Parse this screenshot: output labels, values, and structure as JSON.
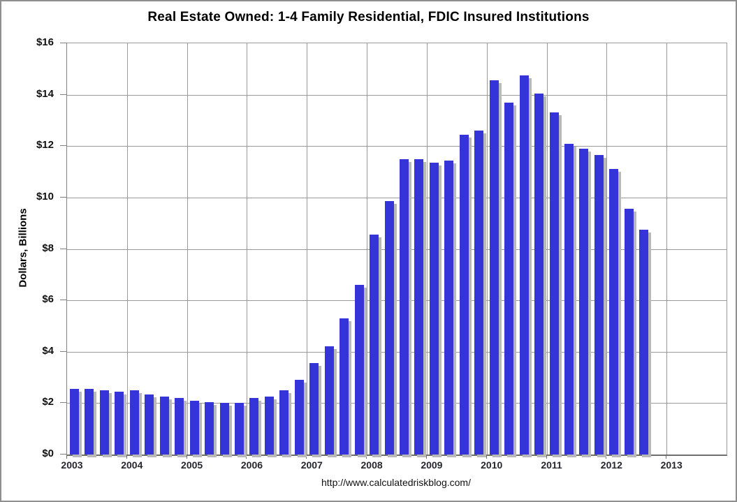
{
  "window": {
    "background": "#ffffff",
    "border_color": "#8f8f8f"
  },
  "chart_data": {
    "type": "bar",
    "title": "Real Estate Owned: 1-4 Family Residential, FDIC Insured Institutions",
    "ylabel": "Dollars, Billions",
    "xlabel": "",
    "footer": "http://www.calculatedriskblog.com/",
    "ylim": [
      0,
      16
    ],
    "y_tick_step": 2,
    "y_tick_labels": [
      "$0",
      "$2",
      "$4",
      "$6",
      "$8",
      "$10",
      "$12",
      "$14",
      "$16"
    ],
    "x_tick_labels": [
      "2003",
      "2004",
      "2005",
      "2006",
      "2007",
      "2008",
      "2009",
      "2010",
      "2011",
      "2012",
      "2013"
    ],
    "x_axis_years_span": 11,
    "quarters_per_year": 4,
    "grid": true,
    "legend_position": "none",
    "bar_color": "#3434d8",
    "bar_shadow_color": "#b9b9b9",
    "gridline_color": "#9a9a9a",
    "categories": [
      "2003 Q1",
      "2003 Q2",
      "2003 Q3",
      "2003 Q4",
      "2004 Q1",
      "2004 Q2",
      "2004 Q3",
      "2004 Q4",
      "2005 Q1",
      "2005 Q2",
      "2005 Q3",
      "2005 Q4",
      "2006 Q1",
      "2006 Q2",
      "2006 Q3",
      "2006 Q4",
      "2007 Q1",
      "2007 Q2",
      "2007 Q3",
      "2007 Q4",
      "2008 Q1",
      "2008 Q2",
      "2008 Q3",
      "2008 Q4",
      "2009 Q1",
      "2009 Q2",
      "2009 Q3",
      "2009 Q4",
      "2010 Q1",
      "2010 Q2",
      "2010 Q3",
      "2010 Q4",
      "2011 Q1",
      "2011 Q2",
      "2011 Q3",
      "2011 Q4",
      "2012 Q1",
      "2012 Q2",
      "2012 Q3"
    ],
    "values": [
      2.55,
      2.55,
      2.5,
      2.45,
      2.5,
      2.35,
      2.25,
      2.2,
      2.1,
      2.05,
      2.0,
      2.0,
      2.2,
      2.25,
      2.5,
      2.9,
      3.55,
      4.2,
      5.3,
      6.6,
      8.55,
      9.85,
      11.5,
      11.5,
      11.35,
      11.45,
      12.45,
      12.6,
      14.55,
      13.7,
      14.75,
      14.05,
      13.3,
      12.1,
      11.9,
      11.65,
      11.1,
      9.55,
      8.75
    ]
  }
}
